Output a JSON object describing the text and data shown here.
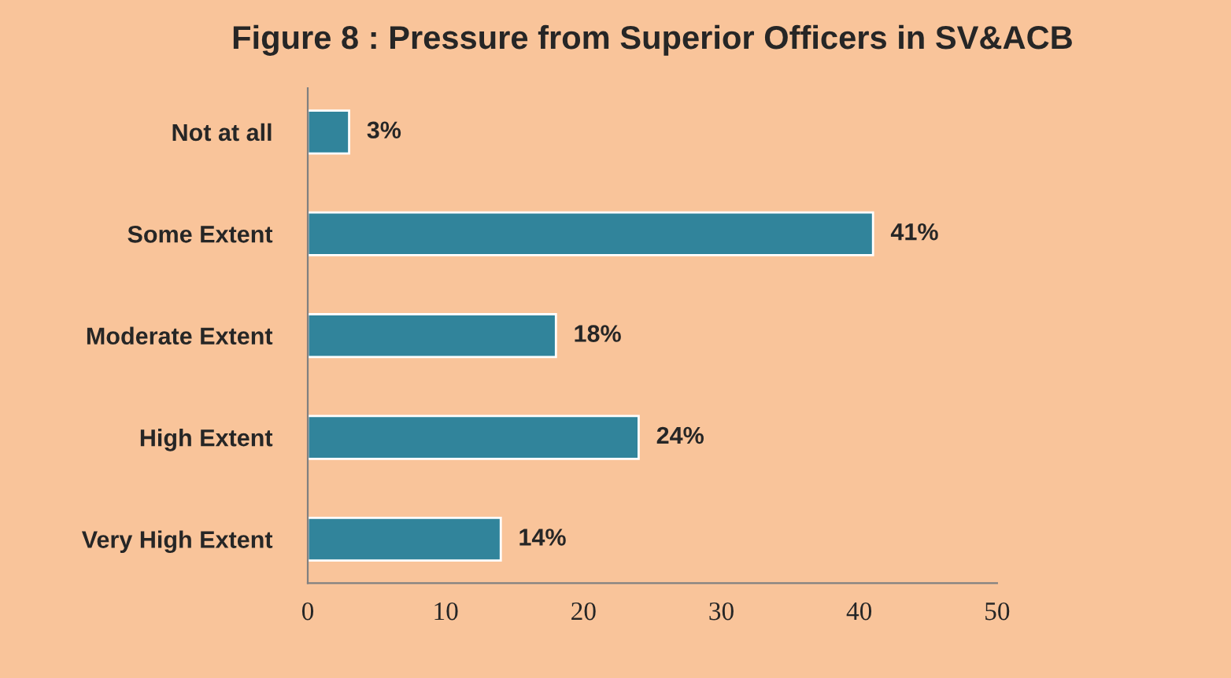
{
  "chart_data": {
    "type": "bar",
    "title": "Figure 8 : Pressure from Superior Officers in SV&ACB",
    "orientation": "horizontal",
    "categories": [
      "Not at all",
      "Some Extent",
      "Moderate Extent",
      "High Extent",
      "Very High Extent"
    ],
    "values": [
      3,
      41,
      18,
      24,
      14
    ],
    "value_labels": [
      "3%",
      "41%",
      "18%",
      "24%",
      "14%"
    ],
    "color": "#31849b",
    "xlim": [
      0,
      50
    ],
    "xticks": [
      0,
      10,
      20,
      30,
      40,
      50
    ],
    "grid": false,
    "legend": false
  }
}
